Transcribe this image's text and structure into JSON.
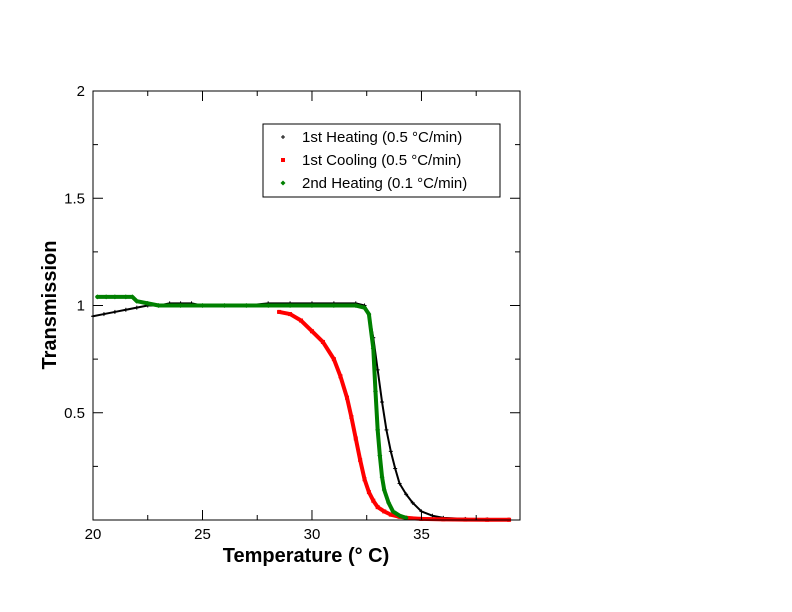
{
  "chart_data": {
    "type": "scatter",
    "title": "",
    "xlabel": "Temperature (° C)",
    "ylabel": "Transmission",
    "xlim": [
      20,
      39.5
    ],
    "ylim": [
      0,
      2
    ],
    "x_ticks": [
      20,
      25,
      30,
      35
    ],
    "x_tick_labels": [
      "20",
      "25",
      "30",
      "35"
    ],
    "y_ticks": [
      0.5,
      1,
      1.5,
      2
    ],
    "y_tick_labels": [
      "0.5",
      "1",
      "1.5",
      "2"
    ],
    "grid": false,
    "legend_position": "top-right",
    "series": [
      {
        "name": "1st Heating (0.5 °C/min)",
        "color": "#000000",
        "marker": "plus",
        "x": [
          20.0,
          20.5,
          21.0,
          21.5,
          22.0,
          22.5,
          23.0,
          23.5,
          24.0,
          24.5,
          25.0,
          26.0,
          27.0,
          28.0,
          29.0,
          30.0,
          31.0,
          32.0,
          32.4,
          32.6,
          32.8,
          33.0,
          33.2,
          33.4,
          33.6,
          33.8,
          34.0,
          34.3,
          34.6,
          35.0,
          35.5,
          36.0,
          37.0,
          38.0,
          39.0
        ],
        "y": [
          0.95,
          0.96,
          0.97,
          0.98,
          0.99,
          1.0,
          1.0,
          1.01,
          1.01,
          1.01,
          1.0,
          1.0,
          1.0,
          1.01,
          1.01,
          1.01,
          1.01,
          1.01,
          1.0,
          0.96,
          0.85,
          0.7,
          0.55,
          0.42,
          0.32,
          0.24,
          0.17,
          0.12,
          0.08,
          0.04,
          0.02,
          0.01,
          0.005,
          0.003,
          0.002
        ]
      },
      {
        "name": "1st Cooling (0.5 °C/min)",
        "color": "#ff0000",
        "marker": "square",
        "x": [
          28.5,
          29.0,
          29.5,
          30.0,
          30.5,
          31.0,
          31.3,
          31.6,
          31.8,
          32.0,
          32.2,
          32.4,
          32.6,
          32.8,
          33.0,
          33.3,
          33.6,
          34.0,
          34.5,
          35.0,
          36.0,
          37.0,
          38.0,
          39.0
        ],
        "y": [
          0.97,
          0.96,
          0.93,
          0.88,
          0.83,
          0.75,
          0.67,
          0.57,
          0.48,
          0.38,
          0.28,
          0.19,
          0.13,
          0.09,
          0.06,
          0.04,
          0.025,
          0.015,
          0.008,
          0.005,
          0.003,
          0.002,
          0.001,
          0.001
        ]
      },
      {
        "name": "2nd Heating (0.1 °C/min)",
        "color": "#008000",
        "marker": "diamond",
        "x": [
          20.2,
          20.6,
          21.0,
          21.5,
          21.8,
          22.0,
          22.5,
          23.0,
          24.0,
          25.0,
          26.0,
          27.0,
          28.0,
          29.0,
          30.0,
          31.0,
          32.0,
          32.4,
          32.6,
          32.8,
          32.9,
          33.0,
          33.1,
          33.2,
          33.3,
          33.5,
          33.7,
          34.0,
          34.3
        ],
        "y": [
          1.04,
          1.04,
          1.04,
          1.04,
          1.04,
          1.02,
          1.01,
          1.0,
          1.0,
          1.0,
          1.0,
          1.0,
          1.0,
          1.0,
          1.0,
          1.0,
          1.0,
          0.99,
          0.96,
          0.8,
          0.6,
          0.42,
          0.3,
          0.2,
          0.14,
          0.08,
          0.04,
          0.02,
          0.01
        ]
      }
    ]
  }
}
